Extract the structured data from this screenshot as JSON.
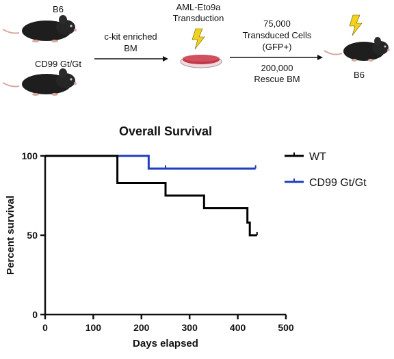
{
  "schematic": {
    "mouse_top_label": "B6",
    "mouse_bottom_label": "CD99 Gt/Gt",
    "arrow1_label_line1": "c-kit enriched",
    "arrow1_label_line2": "BM",
    "dish_label_line1": "AML-Eto9a",
    "dish_label_line2": "Transduction",
    "arrow2_top_line1": "75,000",
    "arrow2_top_line2": "Transduced Cells",
    "arrow2_top_line3": "(GFP+)",
    "arrow2_bottom_line1": "200,000",
    "arrow2_bottom_line2": "Rescue BM",
    "recipient_label": "B6",
    "colors": {
      "mouse": "#1e1e1e",
      "tail": "#d9a8a0",
      "bolt": "#f2d21b",
      "dish": "#c23a4a"
    }
  },
  "chart_data": {
    "type": "line",
    "title": "Overall Survival",
    "xlabel": "Days elapsed",
    "ylabel": "Percent survival",
    "xlim": [
      0,
      500
    ],
    "ylim": [
      0,
      100
    ],
    "xticks": [
      "0",
      "100",
      "200",
      "300",
      "400",
      "500"
    ],
    "yticks": [
      "0",
      "50",
      "100"
    ],
    "legend_position": "right",
    "series": [
      {
        "name": "WT",
        "color": "#000000",
        "x": [
          0,
          150,
          150,
          250,
          330,
          420,
          425,
          440
        ],
        "y": [
          100,
          92,
          83,
          75,
          67,
          58,
          50,
          50
        ],
        "censored": [
          [
            440,
            50
          ]
        ]
      },
      {
        "name": "CD99 Gt/Gt",
        "color": "#1f3fbf",
        "x": [
          0,
          215,
          437
        ],
        "y": [
          100,
          92,
          92
        ],
        "censored": [
          [
            215,
            92
          ],
          [
            250,
            92
          ],
          [
            437,
            92
          ]
        ]
      }
    ]
  }
}
